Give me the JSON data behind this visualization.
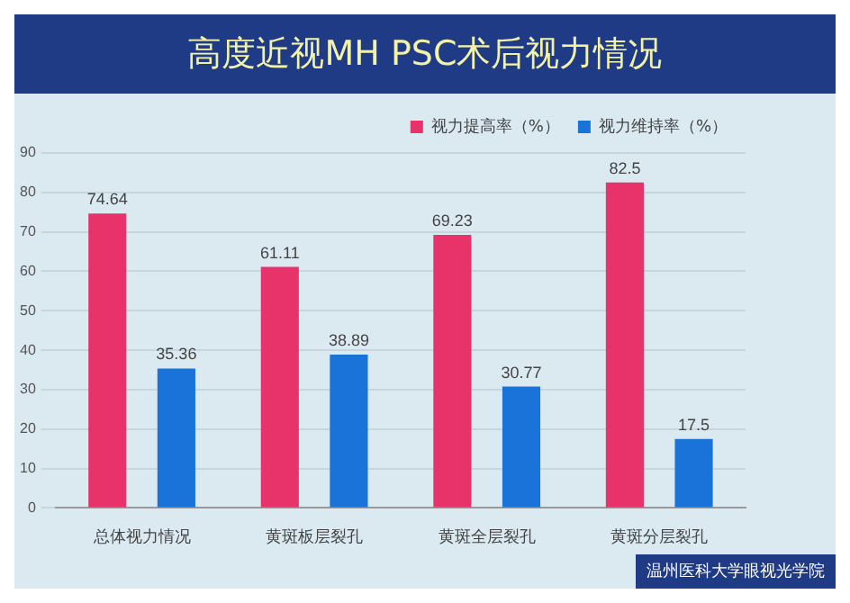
{
  "chart_data": {
    "type": "bar",
    "title": "高度近视MH PSC术后视力情况",
    "categories": [
      "总体视力情况",
      "黄斑板层裂孔",
      "黄斑全层裂孔",
      "黄斑分层裂孔"
    ],
    "series": [
      {
        "name": "视力提高率（%）",
        "color": "#e8336a",
        "values": [
          74.64,
          61.11,
          69.23,
          82.5
        ]
      },
      {
        "name": "视力维持率（%）",
        "color": "#1a73d9",
        "values": [
          35.36,
          38.89,
          30.77,
          17.5
        ]
      }
    ],
    "ylim": [
      0,
      90
    ],
    "yticks": [
      0,
      10,
      20,
      30,
      40,
      50,
      60,
      70,
      80,
      90
    ],
    "grid": "y",
    "legend": "top",
    "data_labels": true,
    "annotations": [
      "温州医科大学眼视光学院"
    ]
  }
}
